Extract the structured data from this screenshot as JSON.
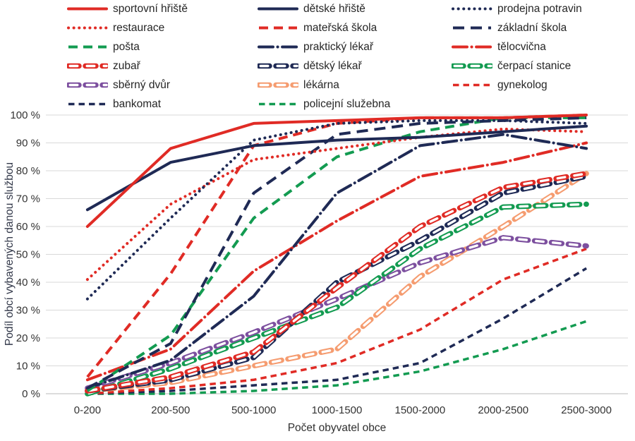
{
  "chart_data": {
    "type": "line",
    "title": "",
    "xlabel": "Počet obyvatel obce",
    "ylabel": "Podíl obcí vybavených danou službou",
    "ylim": [
      0,
      100
    ],
    "grid": true,
    "legend_position": "top",
    "y_ticks": [
      "0 %",
      "10 %",
      "20 %",
      "30 %",
      "40 %",
      "50 %",
      "60 %",
      "70 %",
      "80 %",
      "90 %",
      "100 %"
    ],
    "categories": [
      "0-200",
      "200-500",
      "500-1000",
      "1000-1500",
      "1500-2000",
      "2000-2500",
      "2500-3000"
    ],
    "colors": {
      "red": "#e02b25",
      "navy": "#1f2a55",
      "green": "#139b51",
      "purple": "#7d509f",
      "orange": "#f59c70"
    },
    "series": [
      {
        "name": "policejní služebna",
        "color": "#139b51",
        "style": "shortdash",
        "values": [
          0,
          0,
          1,
          3,
          8,
          16,
          26
        ]
      },
      {
        "name": "bankomat",
        "color": "#1f2a55",
        "style": "shortdash",
        "values": [
          0,
          1,
          3,
          5,
          11,
          27,
          45
        ]
      },
      {
        "name": "gynekolog",
        "color": "#e02b25",
        "style": "shortdash",
        "values": [
          0,
          2,
          5,
          11,
          23,
          41,
          52
        ]
      },
      {
        "name": "lékárna",
        "color": "#f59c70",
        "style": "hollow",
        "values": [
          1,
          4,
          10,
          16,
          42,
          60,
          79
        ]
      },
      {
        "name": "sběrný dvůr",
        "color": "#7d509f",
        "style": "hollow",
        "values": [
          2,
          11,
          22,
          34,
          47,
          56,
          53
        ]
      },
      {
        "name": "čerpací stanice",
        "color": "#139b51",
        "style": "hollow",
        "values": [
          0,
          9,
          20,
          31,
          52,
          67,
          68
        ]
      },
      {
        "name": "dětský lékař",
        "color": "#1f2a55",
        "style": "hollow",
        "values": [
          1,
          5,
          13,
          40,
          55,
          72,
          78
        ]
      },
      {
        "name": "zubař",
        "color": "#e02b25",
        "style": "hollow",
        "values": [
          1,
          6,
          15,
          38,
          60,
          74,
          79
        ]
      },
      {
        "name": "tělocvična",
        "color": "#e02b25",
        "style": "dashdot",
        "values": [
          5,
          16,
          44,
          62,
          78,
          83,
          90
        ]
      },
      {
        "name": "praktický lékař",
        "color": "#1f2a55",
        "style": "dashdot",
        "values": [
          2,
          12,
          35,
          72,
          89,
          93,
          88
        ]
      },
      {
        "name": "pošta",
        "color": "#139b51",
        "style": "dash",
        "values": [
          1,
          21,
          63,
          85,
          94,
          99,
          99
        ]
      },
      {
        "name": "základní škola",
        "color": "#1f2a55",
        "style": "longdash",
        "values": [
          2,
          18,
          72,
          93,
          97,
          98,
          99
        ]
      },
      {
        "name": "mateřská škola",
        "color": "#e02b25",
        "style": "dash",
        "values": [
          6,
          43,
          89,
          97,
          99,
          99,
          100
        ]
      },
      {
        "name": "restaurace",
        "color": "#e02b25",
        "style": "dot",
        "values": [
          41,
          68,
          84,
          88,
          92,
          95,
          94
        ]
      },
      {
        "name": "prodejna potravin",
        "color": "#1f2a55",
        "style": "dot",
        "values": [
          34,
          63,
          91,
          97,
          98,
          98,
          97
        ]
      },
      {
        "name": "dětské hřiště",
        "color": "#1f2a55",
        "style": "solid",
        "values": [
          66,
          83,
          89,
          91,
          92,
          94,
          96
        ]
      },
      {
        "name": "sportovní hřiště",
        "color": "#e02b25",
        "style": "solid",
        "values": [
          60,
          88,
          97,
          98,
          99,
          99,
          100
        ]
      }
    ],
    "legend_columns": [
      {
        "left": 95,
        "series": [
          16,
          13,
          10,
          7,
          4,
          1
        ]
      },
      {
        "left": 365,
        "series": [
          15,
          12,
          9,
          6,
          3,
          0
        ]
      },
      {
        "left": 640,
        "series": [
          14,
          11,
          8,
          5,
          2
        ]
      }
    ]
  },
  "axis": {
    "x_title": "Počet obyvatel obce",
    "y_title": "Podíl obcí vybavených danou službou"
  }
}
